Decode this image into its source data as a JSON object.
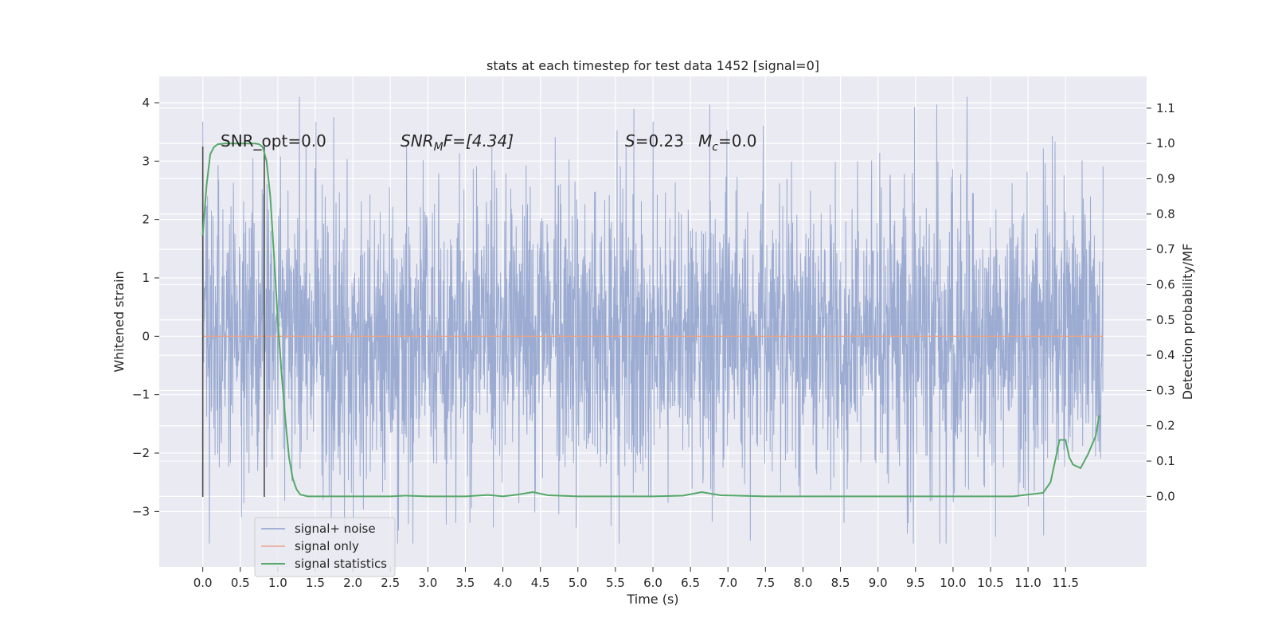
{
  "chart_data": {
    "type": "line",
    "title": "stats at each timestep for test data 1452 [signal=0]",
    "xlabel": "Time (s)",
    "ylabel": "Whitened strain",
    "y2label": "Detection probability/MF",
    "xlim": [
      -0.58,
      12.58
    ],
    "ylim": [
      -3.95,
      4.45
    ],
    "y2lim": [
      -0.2,
      1.19
    ],
    "x_ticks": [
      "0.0",
      "0.5",
      "1.0",
      "1.5",
      "2.0",
      "2.5",
      "3.0",
      "3.5",
      "4.0",
      "4.5",
      "5.0",
      "5.5",
      "6.0",
      "6.5",
      "7.0",
      "7.5",
      "8.0",
      "8.5",
      "9.0",
      "9.5",
      "10.0",
      "10.5",
      "11.0",
      "11.5"
    ],
    "y_ticks": [
      "4",
      "3",
      "2",
      "1",
      "0",
      "−1",
      "−2",
      "−3"
    ],
    "y2_ticks": [
      "1.1",
      "1.0",
      "0.9",
      "0.8",
      "0.7",
      "0.6",
      "0.5",
      "0.4",
      "0.3",
      "0.2",
      "0.1",
      "0.0"
    ],
    "grid": true,
    "legend_position": "lower-left",
    "annotations": {
      "snr_opt": "SNR_opt=0.0",
      "snr_mf": {
        "base": "SNR",
        "sub": "M",
        "rest": "F=[4.34]"
      },
      "stat": {
        "s_label": "S",
        "s_value": "=0.23",
        "mc_label": "M",
        "mc_sub": "c",
        "mc_value": "=0.0"
      }
    },
    "window_markers_x": [
      0.0,
      0.82
    ],
    "series": [
      {
        "name": "signal+ noise",
        "color": "#8da0cb",
        "noise_envelope": {
          "x_range": [
            0.0,
            12.0
          ],
          "typical_abs": 1.5,
          "max": 4.1,
          "min": -3.55
        }
      },
      {
        "name": "signal only",
        "color": "#e8a48b",
        "x": [
          0.0,
          12.0
        ],
        "values": [
          0.0,
          0.0
        ]
      },
      {
        "name": "signal statistics",
        "color": "#55a868",
        "axis": "right",
        "x": [
          0.0,
          0.05,
          0.1,
          0.15,
          0.2,
          0.3,
          0.4,
          0.5,
          0.6,
          0.7,
          0.75,
          0.8,
          0.85,
          0.9,
          0.95,
          1.0,
          1.05,
          1.1,
          1.15,
          1.2,
          1.25,
          1.3,
          1.4,
          1.6,
          2.0,
          2.5,
          2.7,
          3.0,
          3.5,
          3.8,
          4.0,
          4.2,
          4.4,
          4.6,
          5.0,
          6.0,
          6.4,
          6.65,
          6.9,
          7.5,
          9.0,
          10.0,
          10.5,
          10.8,
          11.0,
          11.2,
          11.3,
          11.35,
          11.42,
          11.5,
          11.55,
          11.6,
          11.7,
          11.8,
          11.9,
          11.95
        ],
        "values": [
          0.74,
          0.88,
          0.97,
          0.99,
          0.998,
          1.0,
          1.0,
          1.0,
          1.0,
          1.0,
          0.998,
          0.99,
          0.95,
          0.85,
          0.68,
          0.5,
          0.35,
          0.22,
          0.11,
          0.05,
          0.02,
          0.005,
          0.0,
          0.0,
          0.0,
          0.0,
          0.002,
          0.0,
          0.0,
          0.004,
          0.0,
          0.005,
          0.012,
          0.003,
          0.0,
          0.0,
          0.002,
          0.012,
          0.003,
          0.0,
          0.0,
          0.0,
          0.0,
          0.0,
          0.005,
          0.01,
          0.04,
          0.09,
          0.16,
          0.16,
          0.11,
          0.09,
          0.08,
          0.12,
          0.17,
          0.23
        ]
      }
    ]
  }
}
